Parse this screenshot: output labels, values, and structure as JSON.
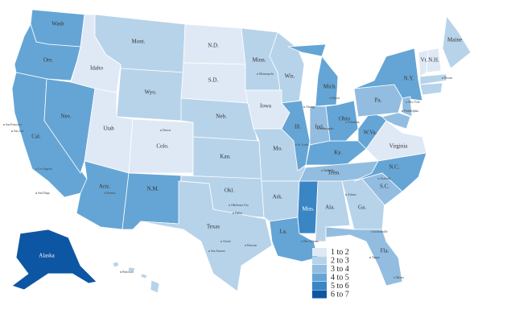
{
  "legend": [
    {
      "label": "1 to 2",
      "color": "#dfe9f5"
    },
    {
      "label": "2 to 3",
      "color": "#b7d3ea"
    },
    {
      "label": "3 to 4",
      "color": "#92bde0"
    },
    {
      "label": "4 to 5",
      "color": "#65a5d5"
    },
    {
      "label": "5 to 6",
      "color": "#3a85c4"
    },
    {
      "label": "6 to 7",
      "color": "#0d56a4"
    }
  ],
  "states": [
    {
      "label": "Wash",
      "bin": "4 to 5"
    },
    {
      "label": "Ore.",
      "bin": "4 to 5"
    },
    {
      "label": "Cal.",
      "bin": "4 to 5"
    },
    {
      "label": "Nev.",
      "bin": "4 to 5"
    },
    {
      "label": "Idaho",
      "bin": "1 to 2"
    },
    {
      "label": "Mont.",
      "bin": "2 to 3"
    },
    {
      "label": "Wyo.",
      "bin": "2 to 3"
    },
    {
      "label": "Utah",
      "bin": "1 to 2"
    },
    {
      "label": "Colo.",
      "bin": "1 to 2"
    },
    {
      "label": "Ariz.",
      "bin": "4 to 5"
    },
    {
      "label": "N.M.",
      "bin": "4 to 5"
    },
    {
      "label": "N.D.",
      "bin": "1 to 2"
    },
    {
      "label": "S.D.",
      "bin": "1 to 2"
    },
    {
      "label": "Neb.",
      "bin": "2 to 3"
    },
    {
      "label": "Kan.",
      "bin": "2 to 3"
    },
    {
      "label": "Okl.",
      "bin": "2 to 3"
    },
    {
      "label": "Texas",
      "bin": "2 to 3"
    },
    {
      "label": "Minn.",
      "bin": "2 to 3"
    },
    {
      "label": "Iowa",
      "bin": "1 to 2"
    },
    {
      "label": "Mo.",
      "bin": "2 to 3"
    },
    {
      "label": "Ark.",
      "bin": "2 to 3"
    },
    {
      "label": "La.",
      "bin": "4 to 5"
    },
    {
      "label": "Wis.",
      "bin": "2 to 3"
    },
    {
      "label": "Ill.",
      "bin": "4 to 5"
    },
    {
      "label": "Miss.",
      "bin": "5 to 6"
    },
    {
      "label": "Mich.",
      "bin": "4 to 5"
    },
    {
      "label": "Ind.",
      "bin": "3 to 4"
    },
    {
      "label": "Ky.",
      "bin": "4 to 5"
    },
    {
      "label": "Tenn.",
      "bin": "3 to 4"
    },
    {
      "label": "Ala.",
      "bin": "2 to 3"
    },
    {
      "label": "Ga.",
      "bin": "2 to 3"
    },
    {
      "label": "Fla.",
      "bin": "3 to 4"
    },
    {
      "label": "Ohio",
      "bin": "4 to 5"
    },
    {
      "label": "W.Va.",
      "bin": "4 to 5"
    },
    {
      "label": "Virginia",
      "bin": "1 to 2"
    },
    {
      "label": "N.C.",
      "bin": "4 to 5"
    },
    {
      "label": "S.C.",
      "bin": "3 to 4"
    },
    {
      "label": "Pa.",
      "bin": "3 to 4"
    },
    {
      "label": "N.Y.",
      "bin": "4 to 5"
    },
    {
      "label": "Maine",
      "bin": "2 to 3"
    },
    {
      "label": "Vt.",
      "bin": "1 to 2"
    },
    {
      "label": "N.H.",
      "bin": "1 to 2"
    },
    {
      "label": "Alaska",
      "bin": "6 to 7"
    },
    {
      "label": null,
      "bin": "2 to 3"
    },
    {
      "label": null,
      "bin": "2 to 3"
    },
    {
      "label": null,
      "bin": "2 to 3"
    },
    {
      "label": null,
      "bin": "3 to 4"
    },
    {
      "label": null,
      "bin": "3 to 4"
    }
  ],
  "cities": [
    "Minneapolis",
    "Chicago",
    "Detroit",
    "Indianapolis",
    "Columbus",
    "St. Louis",
    "Nashville",
    "Denver",
    "Phoenix",
    "Oklahoma City",
    "Dallas",
    "Austin",
    "Houston",
    "San Antonio",
    "New Orleans",
    "Atlanta",
    "Charlotte",
    "Philadelphia",
    "Los Angeles",
    "San Diego",
    "San Francisco",
    "San Jose",
    "Miami",
    "Tampa",
    "Jacksonville",
    "Honolulu",
    "Boston",
    "New York"
  ]
}
